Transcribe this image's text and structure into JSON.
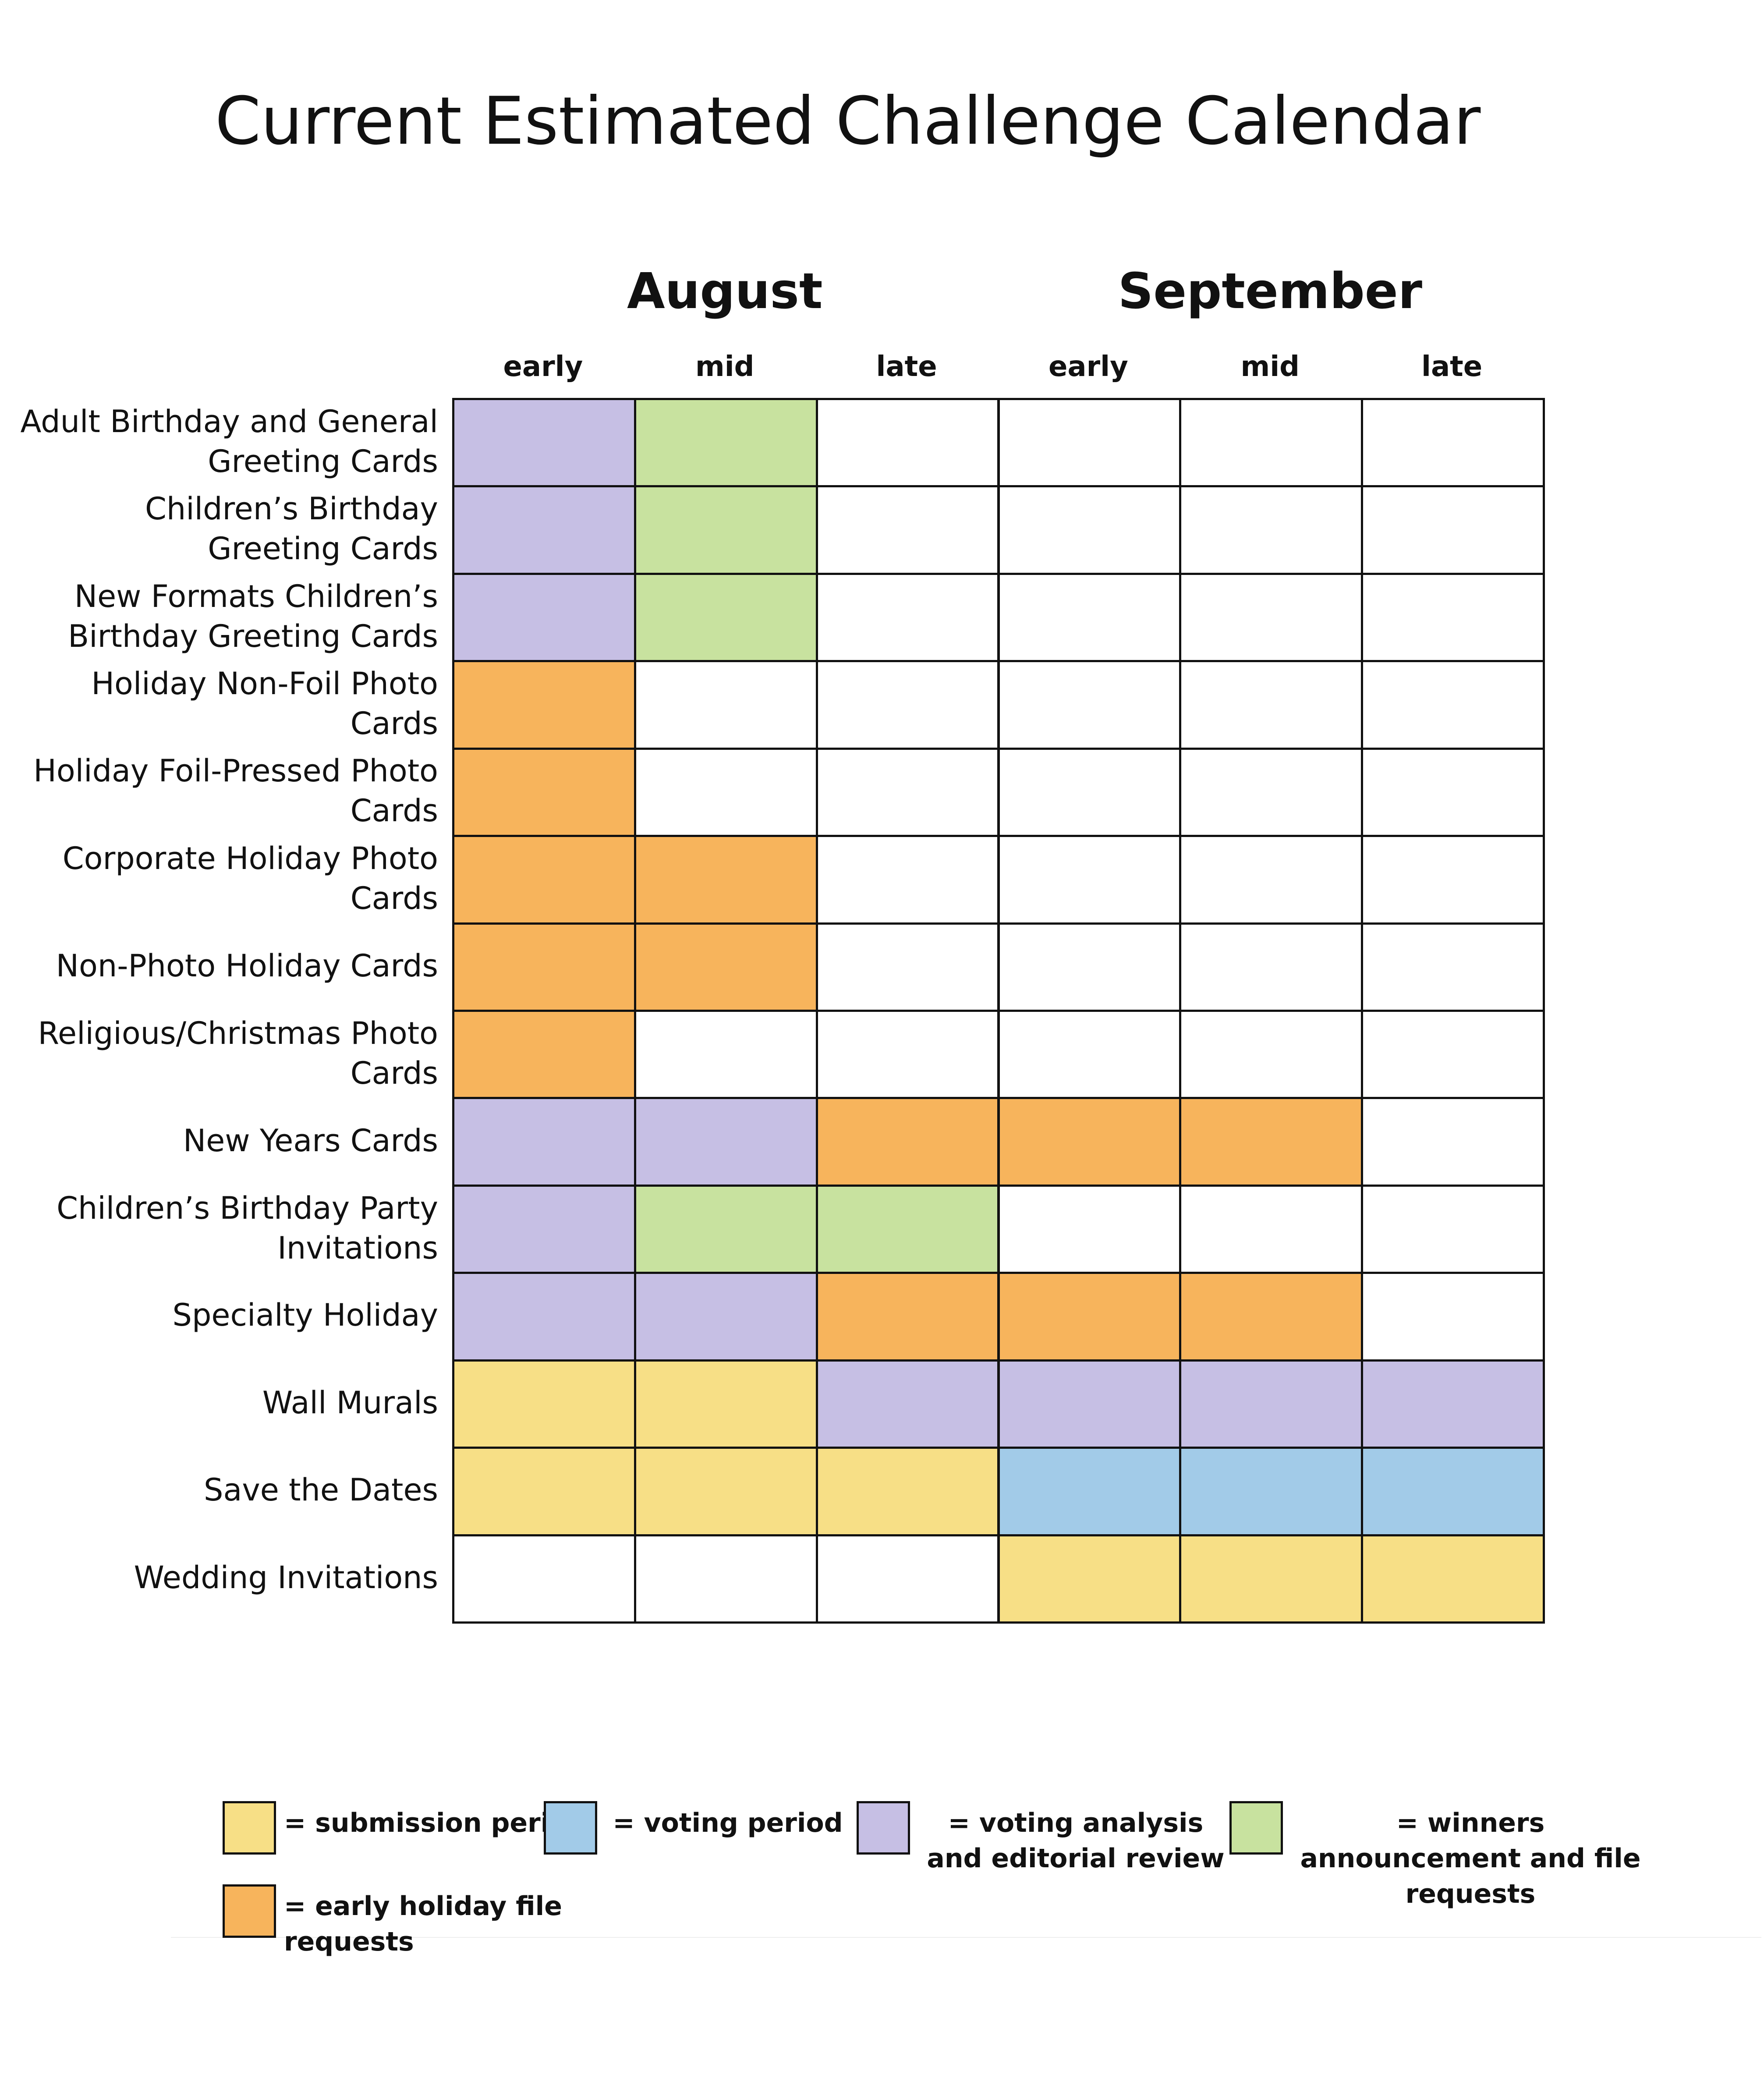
{
  "title": "Current Estimated Challenge Calendar",
  "months": [
    "August",
    "September"
  ],
  "periods": [
    "early",
    "mid",
    "late",
    "early",
    "mid",
    "late"
  ],
  "rows": [
    {
      "label": "Adult Birthday and General Greeting Cards",
      "cells": [
        "#c6bfe4",
        "#c8e29f",
        null,
        null,
        null,
        null
      ]
    },
    {
      "label": "Children’s Birthday Greeting Cards",
      "cells": [
        "#c6bfe4",
        "#c8e29f",
        null,
        null,
        null,
        null
      ]
    },
    {
      "label": "New Formats Children’s Birthday Greeting Cards",
      "cells": [
        "#c6bfe4",
        "#c8e29f",
        null,
        null,
        null,
        null
      ]
    },
    {
      "label": "Holiday Non-Foil Photo Cards",
      "cells": [
        "#f7b45c",
        null,
        null,
        null,
        null,
        null
      ]
    },
    {
      "label": "Holiday Foil-Pressed Photo Cards",
      "cells": [
        "#f7b45c",
        null,
        null,
        null,
        null,
        null
      ]
    },
    {
      "label": "Corporate Holiday Photo Cards",
      "cells": [
        "#f7b45c",
        "#f7b45c",
        null,
        null,
        null,
        null
      ]
    },
    {
      "label": "Non-Photo Holiday Cards",
      "cells": [
        "#f7b45c",
        "#f7b45c",
        null,
        null,
        null,
        null
      ]
    },
    {
      "label": "Religious/Christmas Photo Cards",
      "cells": [
        "#f7b45c",
        null,
        null,
        null,
        null,
        null
      ]
    },
    {
      "label": "New Years Cards",
      "cells": [
        "#c6bfe4",
        "#c6bfe4",
        "#f7b45c",
        "#f7b45c",
        "#f7b45c",
        null
      ]
    },
    {
      "label": "Children’s Birthday Party Invitations",
      "cells": [
        "#c6bfe4",
        "#c8e29f",
        "#c8e29f",
        null,
        null,
        null
      ]
    },
    {
      "label": "Specialty Holiday",
      "cells": [
        "#c6bfe4",
        "#c6bfe4",
        "#f7b45c",
        "#f7b45c",
        "#f7b45c",
        null
      ]
    },
    {
      "label": "Wall Murals",
      "cells": [
        "#f7df86",
        "#f7df86",
        "#c6bfe4",
        "#c6bfe4",
        "#c6bfe4",
        "#c6bfe4"
      ]
    },
    {
      "label": "Save the Dates",
      "cells": [
        "#f7df86",
        "#f7df86",
        "#f7df86",
        "#a2cbe8",
        "#a2cbe8",
        "#a2cbe8"
      ]
    },
    {
      "label": "Wedding Invitations",
      "cells": [
        null,
        null,
        null,
        "#f7df86",
        "#f7df86",
        "#f7df86"
      ]
    }
  ],
  "legend": [
    {
      "color": "#f7df86",
      "label": "= submission period"
    },
    {
      "color": "#a2cbe8",
      "label": "= voting period"
    },
    {
      "color": "#c6bfe4",
      "label": "= voting analysis and editorial review"
    },
    {
      "color": "#c8e29f",
      "label": "= winners announcement and file requests"
    },
    {
      "color": "#f7b45c",
      "label": "= early holiday file requests"
    }
  ]
}
